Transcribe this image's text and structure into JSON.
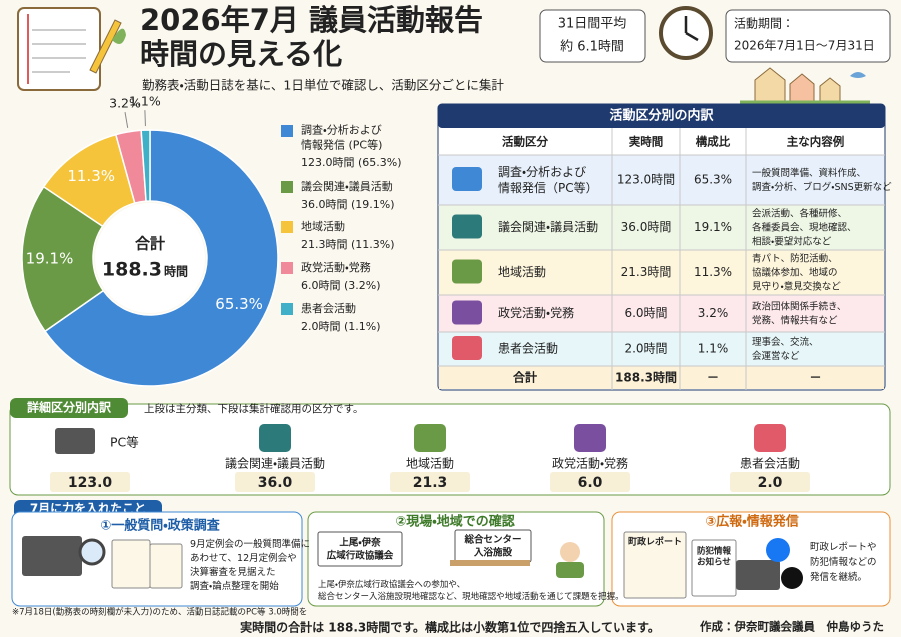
{
  "header": {
    "title_line1": "2026年7月 議員活動報告",
    "title_line2": "時間の見える化",
    "subtitle": "勤務表・活動日誌を基に、1日単位で確認し、活動区分ごとに集計",
    "average_label": "31日間平均",
    "average_value": "約 6.1時間",
    "period_label": "活動期間：",
    "period_value": "2026年7月1日～7月31日"
  },
  "chart_data": {
    "type": "pie",
    "donut": true,
    "categories": [
      "調査・分析および\n情報発信 (PC等)",
      "議会関連・議員活動",
      "地域活動",
      "政党活動・党務",
      "患者会活動"
    ],
    "values": [
      65.3,
      19.1,
      11.3,
      3.2,
      1.1
    ],
    "value_labels": [
      "65.3%",
      "19.1%",
      "11.3%",
      "3.2%",
      "1.1%"
    ],
    "colors": [
      "#3f88d6",
      "#6a9a45",
      "#f5c43a",
      "#f08a9a",
      "#3fb0c8"
    ],
    "legend_details": [
      "123.0時間 (65.3%)",
      "36.0時間 (19.1%)",
      "21.3時間 (11.3%)",
      "6.0時間 (3.2%)",
      "2.0時間 (1.1%)"
    ],
    "center_label": "合計",
    "center_value": "188.3",
    "center_unit": "時間"
  },
  "table": {
    "title": "活動区分別の内訳",
    "headers": [
      "活動区分",
      "実時間",
      "構成比",
      "主な内容例"
    ],
    "rows": [
      [
        "調査・分析および\n情報発信（PC等）",
        "123.0時間",
        "65.3%",
        "一般質問準備、資料作成、\n調査・分析、ブログ・SNS更新など"
      ],
      [
        "議会関連・議員活動",
        "36.0時間",
        "19.1%",
        "会派活動、各種研修、\n各種委員会、現地確認、\n相談・要望対応など"
      ],
      [
        "地域活動",
        "21.3時間",
        "11.3%",
        "青パト、防犯活動、\n協議体参加、地域の\n見守り・意見交換など"
      ],
      [
        "政党活動・党務",
        "6.0時間",
        "3.2%",
        "政治団体関係手続き、\n党務、情報共有など"
      ],
      [
        "患者会活動",
        "2.0時間",
        "1.1%",
        "理事会、交流、\n会運営など"
      ]
    ],
    "total": [
      "合計",
      "188.3時間",
      "－",
      "－"
    ]
  },
  "detail": {
    "title": "詳細区分別内訳",
    "note": "上段は主分類、下段は集計確認用の区分です。",
    "items": [
      {
        "label": "PC等",
        "value": "123.0"
      },
      {
        "label": "議会関連・議員活動",
        "value": "36.0"
      },
      {
        "label": "地域活動",
        "value": "21.3"
      },
      {
        "label": "政党活動・党務",
        "value": "6.0"
      },
      {
        "label": "患者会活動",
        "value": "2.0"
      }
    ]
  },
  "focus": {
    "title": "7月に力を入れたこと",
    "panels": [
      {
        "heading": "①一般質問・政策調査",
        "text": "9月定例会の一般質問準備に\nあわせて、12月定例会や\n決算審査を見据えた\n調査・論点整理を開始"
      },
      {
        "heading": "②現場・地域での確認",
        "signs": [
          "上尾・伊奈\n広域行政協議会",
          "総合センター\n入浴施設"
        ],
        "text": "上尾・伊奈広域行政協議会への参加や、\n総合センター入浴施設現地確認など、現地確認や地域活動を通じて課題を把握。"
      },
      {
        "heading": "③広報・情報発信",
        "signs": [
          "町政レポート",
          "防犯情報\nお知らせ"
        ],
        "text": "町政レポートや\n防犯情報などの\n発信を継続。"
      }
    ]
  },
  "footer": {
    "note": "※7月18日(勤務表の時刻欄が未入力)のため、活動日誌記載のPC等 3.0時間を",
    "summary": "実時間の合計は 188.3時間です。構成比は小数第1位で四捨五入しています。",
    "author": "作成：伊奈町議会議員　仲島ゆうた"
  }
}
